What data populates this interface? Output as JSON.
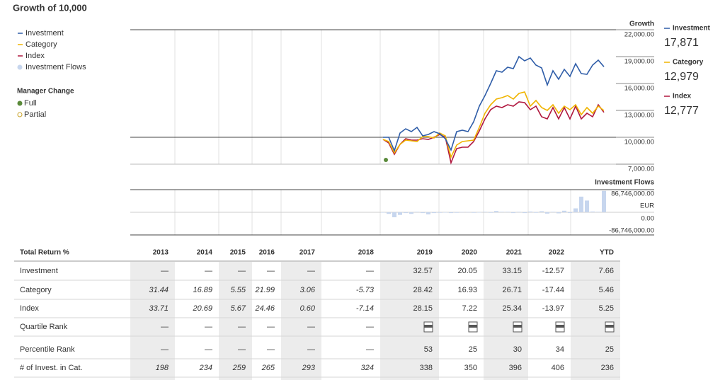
{
  "title": "Growth of 10,000",
  "manager_change": {
    "title": "Manager Change",
    "items": [
      {
        "label": "Full",
        "color": "#5a8a3a"
      },
      {
        "label": "Partial",
        "color": "#c9a227"
      }
    ]
  },
  "chart_data": [
    {
      "type": "line",
      "y_label": "Growth",
      "ylim": [
        7000,
        22000
      ],
      "baseline": 10000,
      "yticks": [
        {
          "value": 22000,
          "label": "22,000.00"
        },
        {
          "value": 19000,
          "label": "19,000.00"
        },
        {
          "value": 16000,
          "label": "16,000.00"
        },
        {
          "value": 13000,
          "label": "13,000.00"
        },
        {
          "value": 10000,
          "label": "10,000.00"
        },
        {
          "value": 7000,
          "label": "7,000.00"
        }
      ],
      "categories": [
        null,
        null,
        null,
        null,
        null,
        null,
        null,
        null,
        null,
        null,
        null,
        null,
        null,
        null,
        null,
        null,
        null,
        null,
        null,
        null,
        null,
        null,
        null,
        null,
        null,
        null,
        null,
        null,
        null,
        null,
        null,
        null,
        null,
        null,
        null,
        null,
        null,
        null,
        null,
        null
      ],
      "series": [
        {
          "name": "Investment",
          "color": "#2f5da8",
          "end_label": "17,871",
          "values": [
            10000,
            10000,
            8500,
            10474,
            10947,
            10632,
            11105,
            10158,
            10316,
            10632,
            10395,
            9842,
            8579,
            10632,
            10790,
            10632,
            11737,
            13474,
            14658,
            16000,
            17421,
            17263,
            17816,
            17658,
            19000,
            18526,
            18842,
            18053,
            17737,
            15842,
            17421,
            16474,
            17579,
            16790,
            18211,
            17105,
            17026,
            18053,
            18605,
            17871
          ]
        },
        {
          "name": "Category",
          "color": "#f0b400",
          "end_label": "12,979",
          "values": [
            9763,
            9526,
            8263,
            9211,
            9684,
            9605,
            9526,
            10079,
            10079,
            9921,
            10474,
            10158,
            7789,
            9132,
            9526,
            9605,
            9684,
            11105,
            12684,
            13632,
            14263,
            14421,
            14658,
            14263,
            14895,
            15053,
            13474,
            14105,
            13316,
            13000,
            13632,
            12684,
            13474,
            13079,
            13632,
            12526,
            13316,
            12684,
            13474,
            12979
          ]
        },
        {
          "name": "Index",
          "color": "#b0173e",
          "end_label": "12,777",
          "values": [
            9763,
            9368,
            8105,
            9211,
            9842,
            9684,
            9684,
            9842,
            9763,
            10000,
            10316,
            10000,
            7158,
            8737,
            8895,
            8895,
            9526,
            10711,
            12053,
            13079,
            13474,
            13316,
            13632,
            13474,
            13947,
            13868,
            13079,
            13474,
            12289,
            12053,
            13316,
            12053,
            13316,
            12053,
            13474,
            12053,
            12684,
            12289,
            13632,
            12777
          ]
        }
      ]
    },
    {
      "type": "bar",
      "title": "Investment Flows",
      "y_label": "EUR",
      "ylim": [
        -86746000,
        86746000
      ],
      "yticks": [
        {
          "value": 86746000,
          "label": "86,746,000.00"
        },
        {
          "value": 0,
          "label": "0.00"
        },
        {
          "value": -86746000,
          "label": "-86,746,000.00"
        }
      ],
      "categories": [
        null,
        null,
        null,
        null,
        null,
        null,
        null,
        null,
        null,
        null,
        null,
        null,
        null,
        null,
        null,
        null,
        null,
        null,
        null,
        null,
        null,
        null,
        null,
        null,
        null,
        null,
        null,
        null,
        null,
        null,
        null,
        null,
        null,
        null,
        null,
        null,
        null,
        null,
        null,
        null
      ],
      "series": [
        {
          "name": "Investment Flows",
          "color": "#c7d6ee",
          "values": [
            0,
            -6000000,
            -19000000,
            -10000000,
            -3000000,
            -6000000,
            2000000,
            -3000000,
            -8000000,
            -3000000,
            -2000000,
            0,
            -3000000,
            -2000000,
            1000000,
            1000000,
            -2000000,
            -1000000,
            2000000,
            -2000000,
            5000000,
            2000000,
            2000000,
            -3000000,
            2000000,
            -3000000,
            3000000,
            -2000000,
            4000000,
            -5000000,
            2000000,
            -4000000,
            6000000,
            -3000000,
            15000000,
            60000000,
            45000000,
            3000000,
            2000000,
            82000000
          ]
        }
      ]
    }
  ],
  "table": {
    "header": [
      "Total Return %",
      "2013",
      "2014",
      "2015",
      "2016",
      "2017",
      "2018",
      "2019",
      "2020",
      "2021",
      "2022",
      "YTD"
    ],
    "rows": [
      [
        "Investment",
        "—",
        "—",
        "—",
        "—",
        "—",
        "—",
        "32.57",
        "20.05",
        "33.15",
        "-12.57",
        "7.66"
      ],
      [
        "Category",
        "31.44",
        "16.89",
        "5.55",
        "21.99",
        "3.06",
        "-5.73",
        "28.42",
        "16.93",
        "26.71",
        "-17.44",
        "5.46"
      ],
      [
        "Index",
        "33.71",
        "20.69",
        "5.67",
        "24.46",
        "0.60",
        "-7.14",
        "28.15",
        "7.22",
        "25.34",
        "-13.97",
        "5.25"
      ],
      [
        "Quartile Rank",
        "—",
        "—",
        "—",
        "—",
        "—",
        "—",
        null,
        null,
        null,
        null,
        null
      ],
      [
        "Percentile Rank",
        "—",
        "—",
        "—",
        "—",
        "—",
        "—",
        "53",
        "25",
        "30",
        "34",
        "25"
      ],
      [
        "# of Invest. in Cat.",
        "198",
        "234",
        "259",
        "265",
        "293",
        "324",
        "338",
        "350",
        "396",
        "406",
        "236"
      ]
    ]
  }
}
